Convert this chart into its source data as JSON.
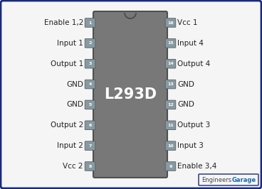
{
  "ic_label": "L293D",
  "bg_color": "#f5f5f5",
  "border_color": "#1a2a7a",
  "ic_body_color": "#787878",
  "ic_body_edge_color": "#505050",
  "pin_box_color": "#8899a0",
  "pin_box_edge": "#556066",
  "pin_text_color": "#222222",
  "ic_text_color": "#ffffff",
  "watermark_engineers_color": "#444444",
  "watermark_garage_color": "#1a6aaa",
  "left_pins": [
    {
      "num": "1",
      "label": "Enable 1,2"
    },
    {
      "num": "2",
      "label": "Input 1"
    },
    {
      "num": "3",
      "label": "Output 1"
    },
    {
      "num": "4",
      "label": "GND"
    },
    {
      "num": "5",
      "label": "GND"
    },
    {
      "num": "6",
      "label": "Output 2"
    },
    {
      "num": "7",
      "label": "Input 2"
    },
    {
      "num": "8",
      "label": "Vcc 2"
    }
  ],
  "right_pins": [
    {
      "num": "16",
      "label": "Vcc 1"
    },
    {
      "num": "15",
      "label": "Input 4"
    },
    {
      "num": "14",
      "label": "Output 4"
    },
    {
      "num": "13",
      "label": "GND"
    },
    {
      "num": "12",
      "label": "GND"
    },
    {
      "num": "11",
      "label": "Output 3"
    },
    {
      "num": "10",
      "label": "Input 3"
    },
    {
      "num": "9",
      "label": "Enable 3,4"
    }
  ]
}
